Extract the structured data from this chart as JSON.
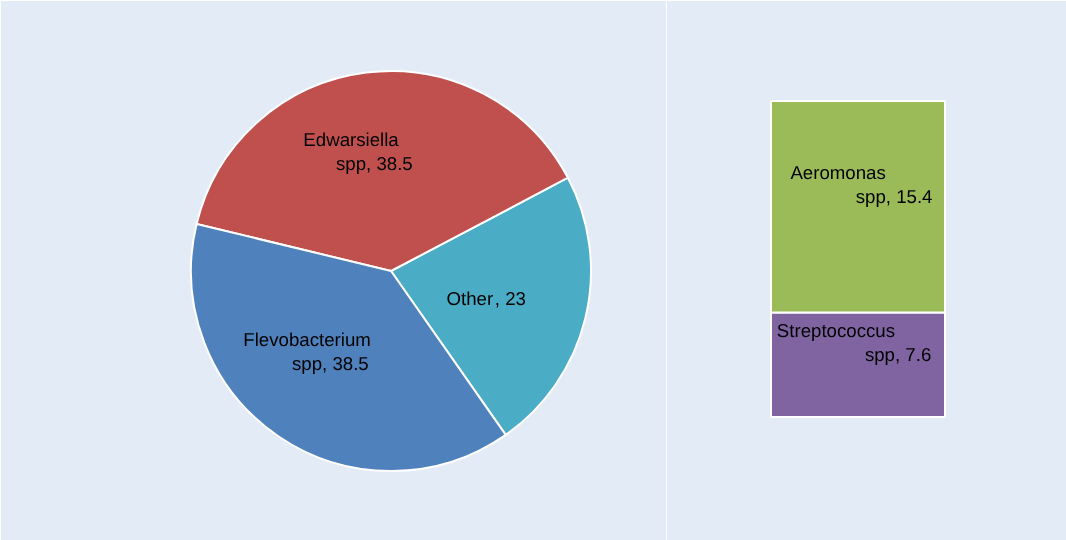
{
  "chart_data": [
    {
      "type": "pie",
      "categories": [
        "Other",
        "Edwarsiella spp",
        "Flevobacterium spp"
      ],
      "values": [
        23,
        38.5,
        38.5
      ],
      "colors": [
        "#4bacc6",
        "#c0504d",
        "#4f81bd"
      ],
      "value_labels": [
        ", 23",
        ", 38.5",
        ", 38.5"
      ]
    },
    {
      "type": "bar",
      "stacked": true,
      "categories": [
        null
      ],
      "series": [
        {
          "name": "Streptococcus spp",
          "color": "#8064a2",
          "values": [
            7.6
          ],
          "value_labels": [
            ", 7.6"
          ]
        },
        {
          "name": "Aeromonas spp",
          "color": "#9bbb59",
          "values": [
            15.4
          ],
          "value_labels": [
            ", 15.4"
          ]
        }
      ]
    }
  ]
}
